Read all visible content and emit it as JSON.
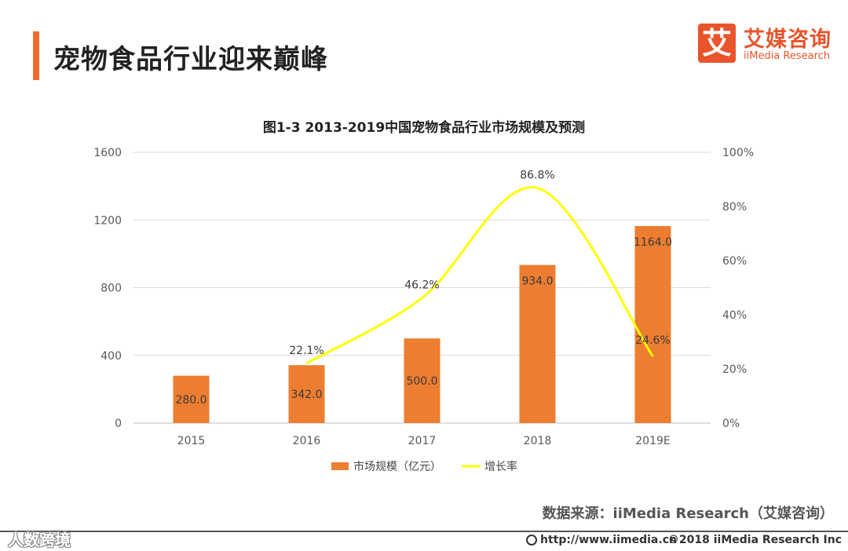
{
  "header": {
    "title": "宠物食品行业迎来巅峰"
  },
  "brand": {
    "logo_char": "艾",
    "name_cn": "艾媒咨询",
    "name_en": "iiMedia Research",
    "color": "#e8542c"
  },
  "chart_data": {
    "type": "bar",
    "title": "图1-3 2013-2019中国宠物食品行业市场规模及预测",
    "categories": [
      "2015",
      "2016",
      "2017",
      "2018",
      "2019E"
    ],
    "series": [
      {
        "name": "市场规模（亿元）",
        "kind": "bar",
        "axis": "left",
        "color": "#ed7d31",
        "values": [
          280.0,
          342.0,
          500.0,
          934.0,
          1164.0
        ],
        "labels": [
          "280.0",
          "342.0",
          "500.0",
          "934.0",
          "1164.0"
        ]
      },
      {
        "name": "增长率",
        "kind": "line",
        "axis": "right",
        "color": "#ffff00",
        "values": [
          null,
          22.1,
          46.2,
          86.8,
          24.6
        ],
        "labels": [
          "",
          "22.1%",
          "46.2%",
          "86.8%",
          "24.6%"
        ]
      }
    ],
    "y_left": {
      "ticks": [
        "0",
        "400",
        "800",
        "1200",
        "1600"
      ],
      "range": [
        0,
        1600
      ]
    },
    "y_right": {
      "ticks": [
        "0%",
        "20%",
        "40%",
        "60%",
        "80%",
        "100%"
      ],
      "range": [
        0,
        100
      ]
    },
    "grid": true,
    "legend": "bottom-center"
  },
  "footer": {
    "source": "数据来源：iiMedia Research（艾媒咨询）",
    "url": "http://www.iimedia.cn",
    "copyright": "©2018  iiMedia Research  Inc",
    "watermark": "人数跨境"
  }
}
